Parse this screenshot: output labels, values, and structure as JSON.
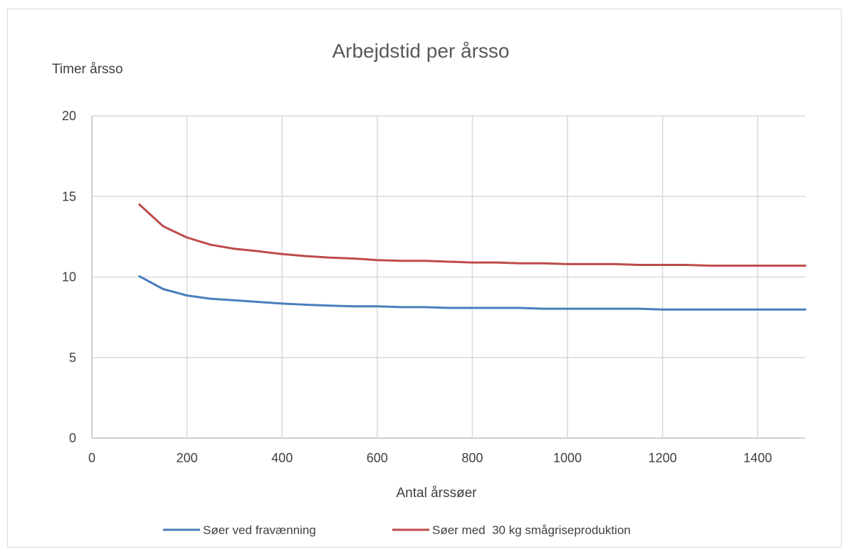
{
  "chart_data": {
    "type": "line",
    "title": "Arbejdstid per årsso",
    "xlabel": "Antal årssøer",
    "ylabel": "Timer årsso",
    "xlim": [
      0,
      1500
    ],
    "ylim": [
      0,
      20
    ],
    "x_ticks": [
      0,
      200,
      400,
      600,
      800,
      1000,
      1200,
      1400
    ],
    "y_ticks": [
      0,
      5,
      10,
      15,
      20
    ],
    "grid": true,
    "legend_position": "bottom",
    "x": [
      100,
      150,
      200,
      250,
      300,
      350,
      400,
      450,
      500,
      550,
      600,
      650,
      700,
      750,
      800,
      850,
      900,
      950,
      1000,
      1050,
      1100,
      1150,
      1200,
      1250,
      1300,
      1350,
      1400,
      1450,
      1500
    ],
    "series": [
      {
        "name": "Søer ved fravænning",
        "color": "#4a7ebb",
        "values": [
          10.05,
          9.25,
          8.85,
          8.65,
          8.55,
          8.45,
          8.35,
          8.28,
          8.22,
          8.18,
          8.18,
          8.13,
          8.13,
          8.08,
          8.08,
          8.08,
          8.08,
          8.03,
          8.03,
          8.03,
          8.03,
          8.03,
          7.98,
          7.98,
          7.98,
          7.98,
          7.98,
          7.98,
          7.98
        ]
      },
      {
        "name": "Søer med  30 kg smågriseproduktion",
        "color": "#be4b48",
        "values": [
          14.5,
          13.15,
          12.45,
          12.0,
          11.75,
          11.6,
          11.42,
          11.3,
          11.2,
          11.15,
          11.05,
          11.0,
          11.0,
          10.95,
          10.9,
          10.9,
          10.85,
          10.85,
          10.8,
          10.8,
          10.8,
          10.75,
          10.75,
          10.75,
          10.7,
          10.7,
          10.7,
          10.7,
          10.7
        ]
      }
    ]
  }
}
